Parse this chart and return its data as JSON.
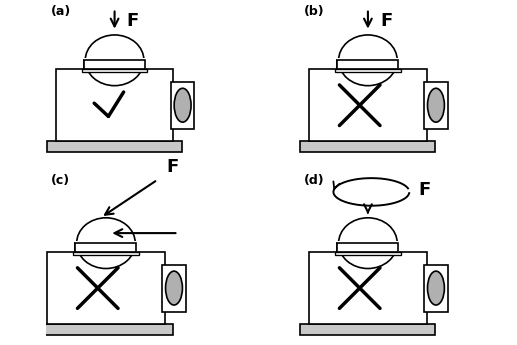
{
  "fig_width": 5.17,
  "fig_height": 3.45,
  "dpi": 100,
  "bg_color": "#ffffff",
  "gray_color": "#b0b0b0",
  "light_gray": "#c8c8c8",
  "panels": [
    "(a)",
    "(b)",
    "(c)",
    "(d)"
  ]
}
